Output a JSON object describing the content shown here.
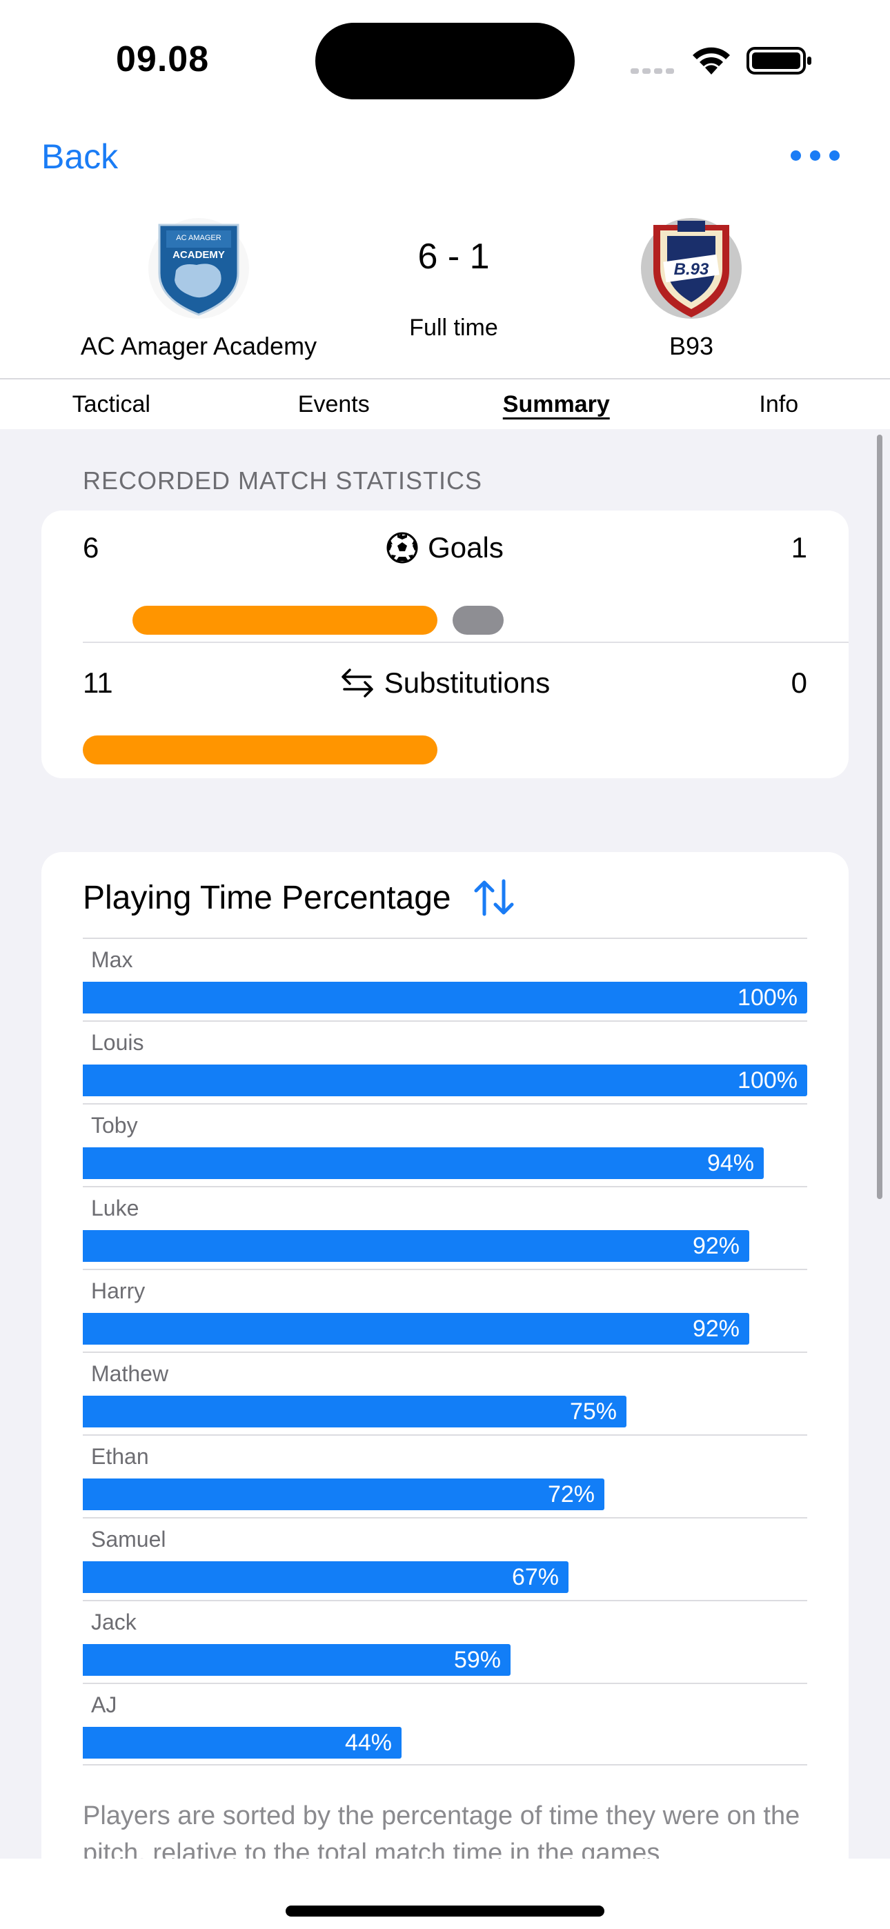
{
  "status": {
    "time": "09.08"
  },
  "nav": {
    "back_label": "Back"
  },
  "match": {
    "home_team": "AC Amager Academy",
    "home_logo_top": "AC AMAGER",
    "home_logo_bottom": "ACADEMY",
    "away_team": "B93",
    "away_logo_text": "B.93",
    "score": "6 - 1",
    "status": "Full time"
  },
  "tabs": [
    {
      "label": "Tactical",
      "active": false
    },
    {
      "label": "Events",
      "active": false
    },
    {
      "label": "Summary",
      "active": true
    },
    {
      "label": "Info",
      "active": false
    }
  ],
  "stats_section": {
    "title": "RECORDED MATCH STATISTICS",
    "goals": {
      "label": "Goals",
      "home": "6",
      "away": "1"
    },
    "substitutions": {
      "label": "Substitutions",
      "home": "11",
      "away": "0"
    }
  },
  "playing_time": {
    "title": "Playing Time Percentage",
    "players": [
      {
        "name": "Max",
        "value": "100%",
        "percent": 100
      },
      {
        "name": "Louis",
        "value": "100%",
        "percent": 100
      },
      {
        "name": "Toby",
        "value": "94%",
        "percent": 94
      },
      {
        "name": "Luke",
        "value": "92%",
        "percent": 92
      },
      {
        "name": "Harry",
        "value": "92%",
        "percent": 92
      },
      {
        "name": "Mathew",
        "value": "75%",
        "percent": 75
      },
      {
        "name": "Ethan",
        "value": "72%",
        "percent": 72
      },
      {
        "name": "Samuel",
        "value": "67%",
        "percent": 67
      },
      {
        "name": "Jack",
        "value": "59%",
        "percent": 59
      },
      {
        "name": "AJ",
        "value": "44%",
        "percent": 44
      }
    ],
    "footnote": "Players are sorted by the percentage of time they were on the pitch, relative to the total match time in the games"
  },
  "colors": {
    "accent": "#1a7cf5",
    "home_bar": "#ff9500",
    "away_bar": "#8e8e93",
    "playing_bar": "#127ef7"
  }
}
